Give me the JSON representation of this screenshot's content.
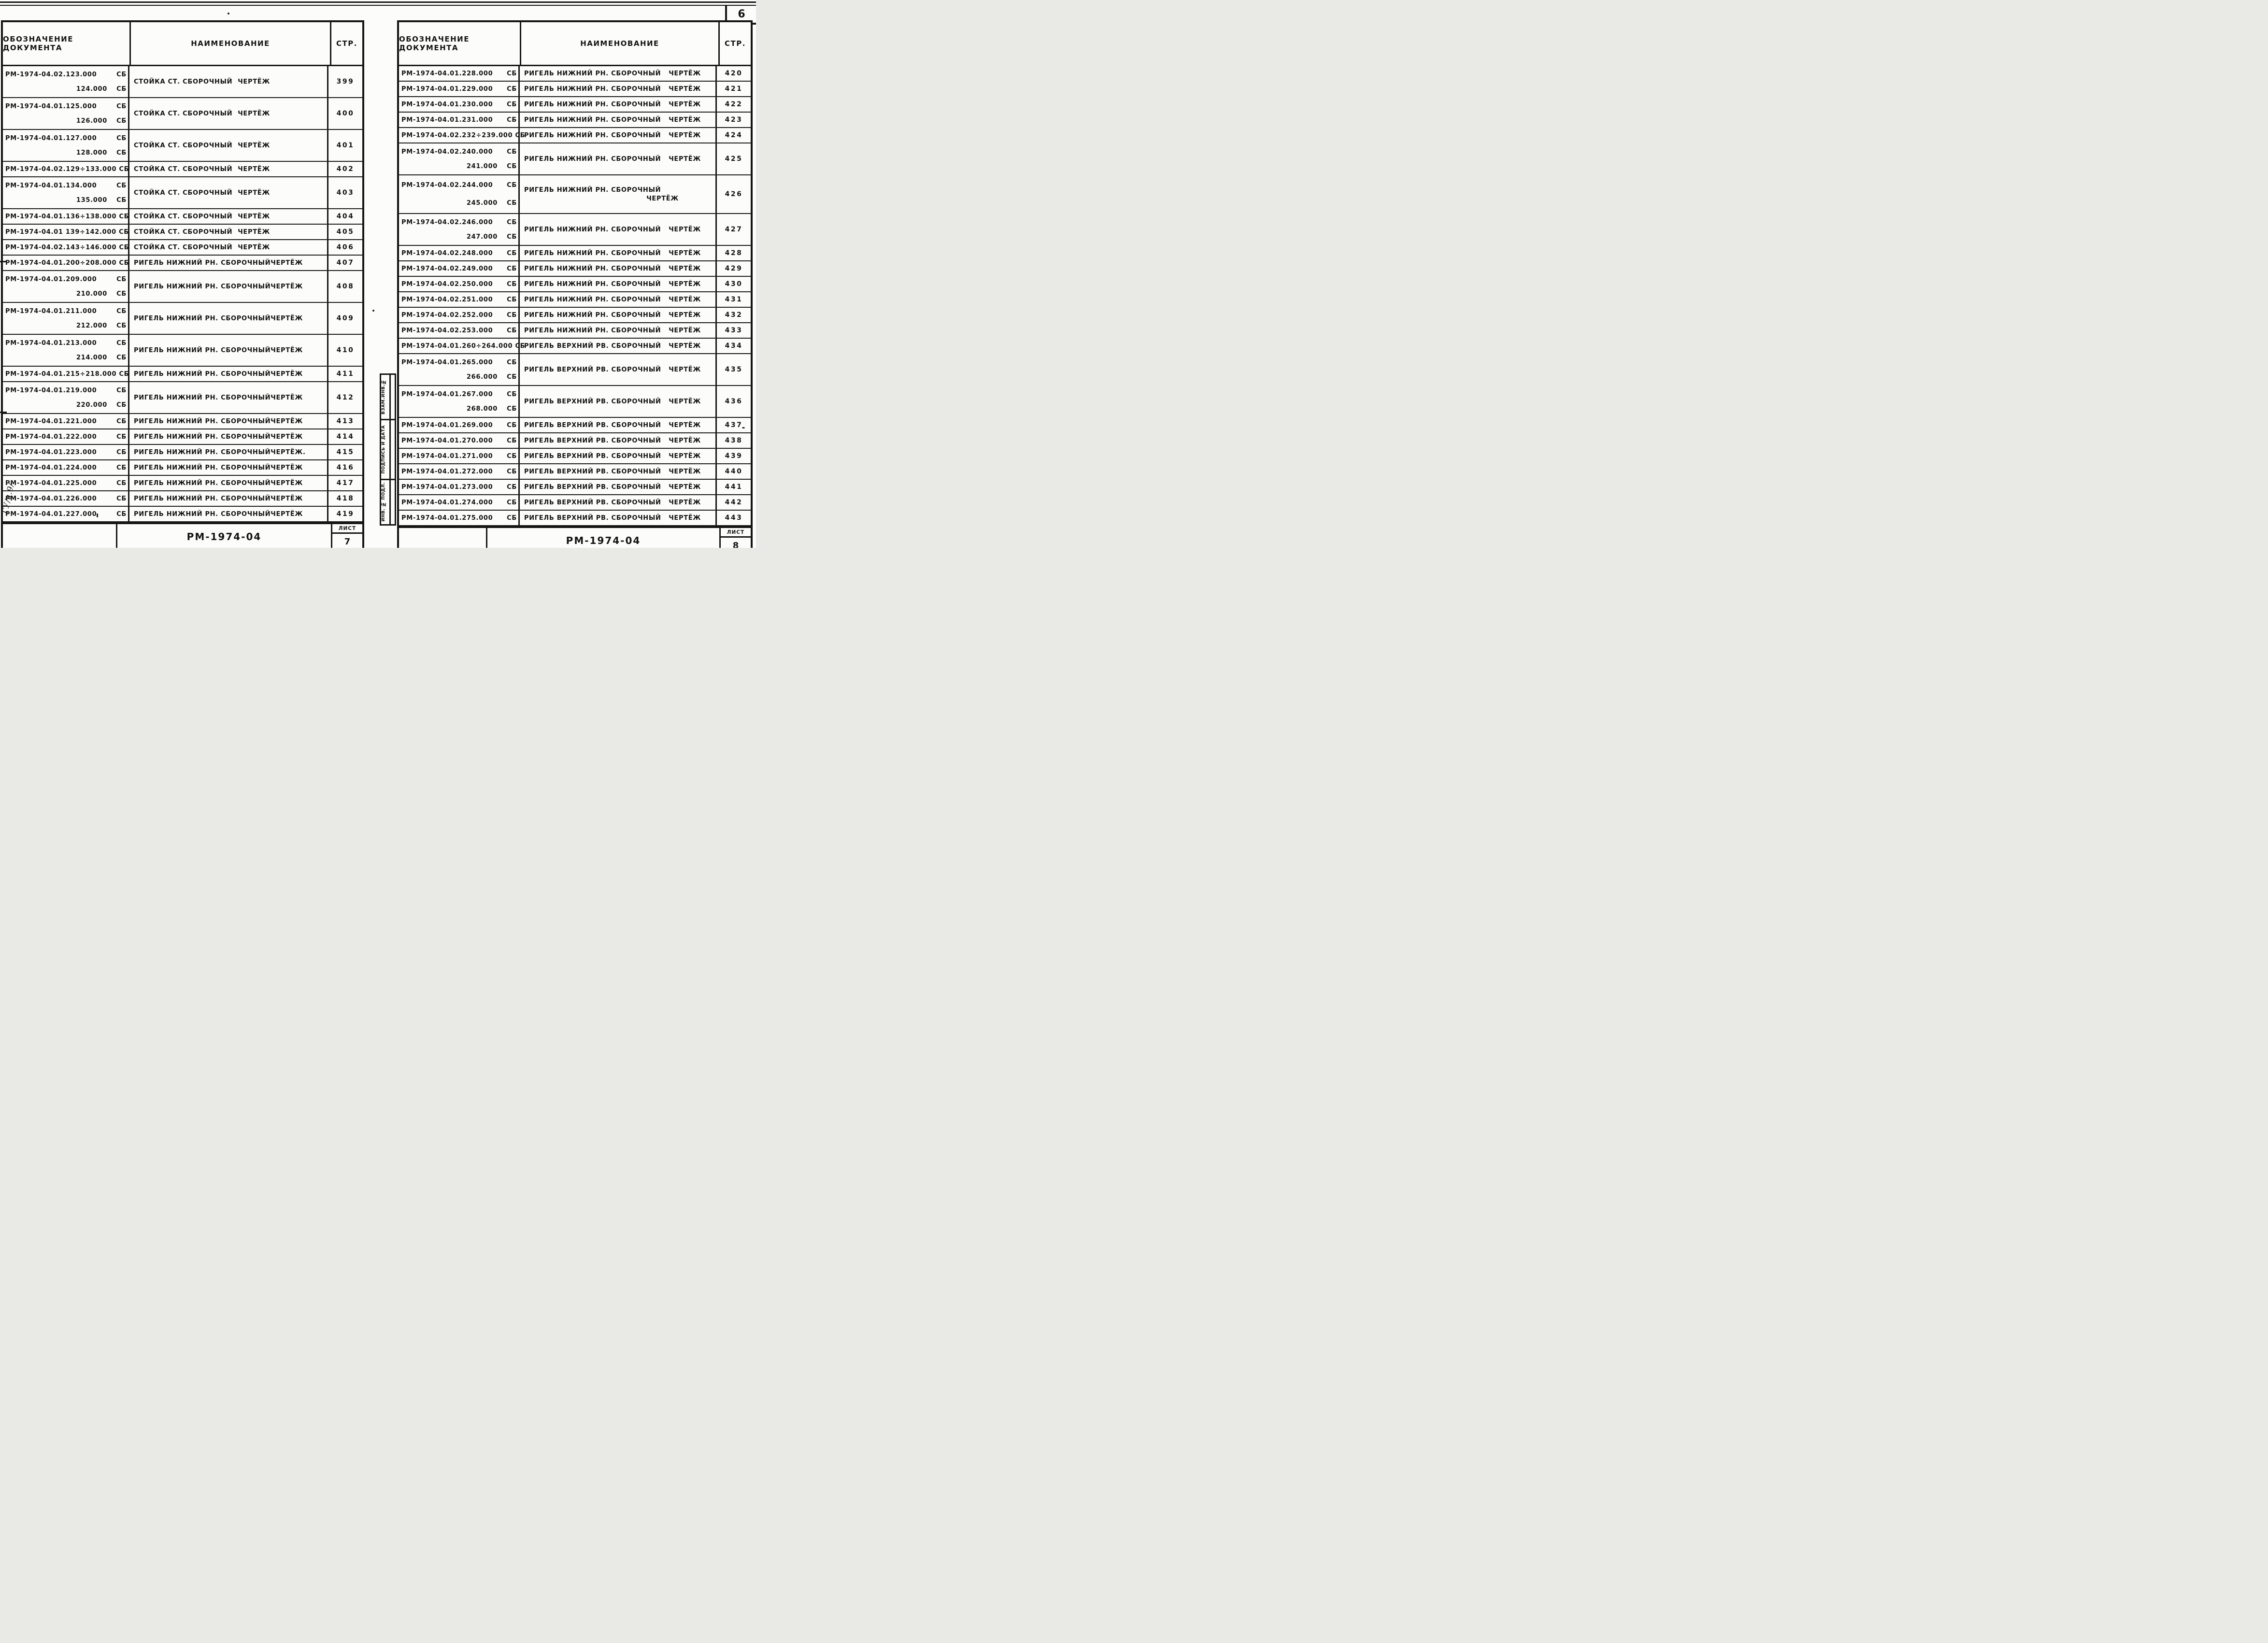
{
  "page": {
    "corner_number": "6",
    "margin_note": "ГУ/а.9/"
  },
  "stamp": {
    "labels": [
      "ВЗАМ.ИНВ.№",
      "ПОДПИСЬ И ДАТА",
      "ИНВ. № ПОДЛ."
    ]
  },
  "tables": [
    {
      "side": "left",
      "header": {
        "designation": "ОБОЗНАЧЕНИЕ ДОКУМЕНТА",
        "name": "НАИМЕНОВАНИЕ",
        "page": "СТР."
      },
      "footer": {
        "doc": "РМ-1974-04",
        "sheet_label": "ЛИСТ",
        "sheet": "7"
      },
      "rows": [
        {
          "d1": "РМ-1974-04.02.123.000",
          "s1": "СБ",
          "d2": "124.000",
          "s2": "СБ",
          "n1": "СТОЙКА СТ. СБОРОЧНЫЙ",
          "n2": "ЧЕРТЁЖ",
          "p": "399"
        },
        {
          "d1": "РМ-1974-04.01.125.000",
          "s1": "СБ",
          "d2": "126.000",
          "s2": "СБ",
          "n1": "СТОЙКА СТ. СБОРОЧНЫЙ",
          "n2": "ЧЕРТЁЖ",
          "p": "400"
        },
        {
          "d1": "РМ-1974-04.01.127.000",
          "s1": "СБ",
          "d2": "128.000",
          "s2": "СБ",
          "n1": "СТОЙКА СТ. СБОРОЧНЫЙ",
          "n2": "ЧЕРТЁЖ",
          "p": "401"
        },
        {
          "d1": "РМ-1974-04.02.129÷133.000",
          "s1": "СБ",
          "n1": "СТОЙКА СТ. СБОРОЧНЫЙ",
          "n2": "ЧЕРТЁЖ",
          "p": "402"
        },
        {
          "d1": "РМ-1974-04.01.134.000",
          "s1": "СБ",
          "d2": "135.000",
          "s2": "СБ",
          "n1": "СТОЙКА СТ. СБОРОЧНЫЙ",
          "n2": "ЧЕРТЁЖ",
          "p": "403"
        },
        {
          "d1": "РМ-1974-04.01.136÷138.000",
          "s1": "СБ",
          "n1": "СТОЙКА СТ. СБОРОЧНЫЙ",
          "n2": "ЧЕРТЁЖ",
          "p": "404"
        },
        {
          "d1": "РМ-1974-04.01 139÷142.000",
          "s1": "СБ",
          "n1": "СТОЙКА СТ. СБОРОЧНЫЙ",
          "n2": "ЧЕРТЁЖ",
          "p": "405"
        },
        {
          "d1": "РМ-1974-04.02.143÷146.000",
          "s1": "СБ",
          "n1": "СТОЙКА СТ. СБОРОЧНЫЙ",
          "n2": "ЧЕРТЁЖ",
          "p": "406"
        },
        {
          "d1": "РМ-1974-04.01.200÷208.000",
          "s1": "СБ",
          "n1": "РИГЕЛЬ НИЖНИЙ РН. СБОРОЧНЫЙ",
          "n2": "ЧЕРТЁЖ",
          "p": "407"
        },
        {
          "d1": "РМ-1974-04.01.209.000",
          "s1": "СБ",
          "d2": "210.000",
          "s2": "СБ",
          "n1": "РИГЕЛЬ НИЖНИЙ РН. СБОРОЧНЫЙ",
          "n2": "ЧЕРТЁЖ",
          "p": "408"
        },
        {
          "d1": "РМ-1974-04.01.211.000",
          "s1": "СБ",
          "d2": "212.000",
          "s2": "СБ",
          "n1": "РИГЕЛЬ НИЖНИЙ РН. СБОРОЧНЫЙ",
          "n2": "ЧЕРТЁЖ",
          "p": "409"
        },
        {
          "d1": "РМ-1974-04.01.213.000",
          "s1": "СБ",
          "d2": "214.000",
          "s2": "СБ",
          "n1": "РИГЕЛЬ НИЖНИЙ РН. СБОРОЧНЫЙ",
          "n2": "ЧЕРТЁЖ",
          "p": "410"
        },
        {
          "d1": "РМ-1974-04.01.215÷218.000",
          "s1": "СБ",
          "n1": "РИГЕЛЬ НИЖНИЙ РН. СБОРОЧНЫЙ",
          "n2": "ЧЕРТЁЖ",
          "p": "411"
        },
        {
          "d1": "РМ-1974-04.01.219.000",
          "s1": "СБ",
          "d2": "220.000",
          "s2": "СБ",
          "n1": "РИГЕЛЬ НИЖНИЙ РН. СБОРОЧНЫЙ",
          "n2": "ЧЕРТЁЖ",
          "p": "412"
        },
        {
          "d1": "РМ-1974-04.01.221.000",
          "s1": "СБ",
          "n1": "РИГЕЛЬ НИЖНИЙ РН. СБОРОЧНЫЙ",
          "n2": "ЧЕРТЁЖ",
          "p": "413"
        },
        {
          "d1": "РМ-1974-04.01.222.000",
          "s1": "СБ",
          "n1": "РИГЕЛЬ НИЖНИЙ РН. СБОРОЧНЫЙ",
          "n2": "ЧЕРТЁЖ",
          "p": "414"
        },
        {
          "d1": "РМ-1974-04.01.223.000",
          "s1": "СБ",
          "n1": "РИГЕЛЬ НИЖНИЙ РН. СБОРОЧНЫЙ",
          "n2": "ЧЕРТЁЖ.",
          "p": "415"
        },
        {
          "d1": "РМ-1974-04.01.224.000",
          "s1": "СБ",
          "n1": "РИГЕЛЬ НИЖНИЙ РН. СБОРОЧНЫЙ",
          "n2": "ЧЕРТЁЖ",
          "p": "416"
        },
        {
          "d1": "РМ-1974-04.01.225.000",
          "s1": "СБ",
          "n1": "РИГЕЛЬ НИЖНИЙ РН. СБОРОЧНЫЙ",
          "n2": "ЧЕРТЁЖ",
          "p": "417"
        },
        {
          "d1": "РМ-1974-04.01.226.000",
          "s1": "СБ",
          "n1": "РИГЕЛЬ НИЖНИЙ РН. СБОРОЧНЫЙ",
          "n2": "ЧЕРТЁЖ",
          "p": "418"
        },
        {
          "d1": "РМ-1974-04.01.227.000",
          "s1": "СБ",
          "n1": "РИГЕЛЬ НИЖНИЙ РН. СБОРОЧНЫЙ",
          "n2": "ЧЕРТЁЖ",
          "p": "419"
        }
      ]
    },
    {
      "side": "right",
      "header": {
        "designation": "ОБОЗНАЧЕНИЕ ДОКУМЕНТА",
        "name": "НАИМЕНОВАНИЕ",
        "page": "СТР."
      },
      "footer": {
        "doc": "РМ-1974-04",
        "sheet_label": "ЛИСТ",
        "sheet": "8"
      },
      "rows": [
        {
          "d1": "РМ-1974-04.01.228.000",
          "s1": "СБ",
          "n1": "РИГЕЛЬ НИЖНИЙ РН. СБОРОЧНЫЙ",
          "n2": "ЧЕРТЁЖ",
          "p": "420"
        },
        {
          "d1": "РМ-1974-04.01.229.000",
          "s1": "СБ",
          "n1": "РИГЕЛЬ НИЖНИЙ РН. СБОРОЧНЫЙ",
          "n2": "ЧЕРТЁЖ",
          "p": "421"
        },
        {
          "d1": "РМ-1974-04.01.230.000",
          "s1": "СБ",
          "n1": "РИГЕЛЬ НИЖНИЙ РН. СБОРОЧНЫЙ",
          "n2": "ЧЕРТЁЖ",
          "p": "422"
        },
        {
          "d1": "РМ-1974-04.01.231.000",
          "s1": "СБ",
          "n1": "РИГЕЛЬ НИЖНИЙ РН. СБОРОЧНЫЙ",
          "n2": "ЧЕРТЁЖ",
          "p": "423"
        },
        {
          "d1": "РМ-1974-04.02.232÷239.000",
          "s1": "СБ",
          "n1": "РИГЕЛЬ НИЖНИЙ РН. СБОРОЧНЫЙ",
          "n2": "ЧЕРТЁЖ",
          "p": "424"
        },
        {
          "d1": "РМ-1974-04.02.240.000",
          "s1": "СБ",
          "d2": "241.000",
          "s2": "СБ",
          "n1": "РИГЕЛЬ НИЖНИЙ РН. СБОРОЧНЫЙ",
          "n2": "ЧЕРТЁЖ",
          "p": "425"
        },
        {
          "d1": "РМ-1974-04.02.244.000",
          "s1": "СБ",
          "d2": "245.000",
          "s2": "СБ",
          "n1": "РИГЕЛЬ НИЖНИЙ РН. СБОРОЧНЫЙ",
          "n2": "ЧЕРТЁЖ",
          "p": "426",
          "wrap": true
        },
        {
          "d1": "РМ-1974-04.02.246.000",
          "s1": "СБ",
          "d2": "247.000",
          "s2": "СБ",
          "n1": "РИГЕЛЬ НИЖНИЙ РН. СБОРОЧНЫЙ",
          "n2": "ЧЕРТЁЖ",
          "p": "427"
        },
        {
          "d1": "РМ-1974-04.02.248.000",
          "s1": "СБ",
          "n1": "РИГЕЛЬ НИЖНИЙ РН. СБОРОЧНЫЙ",
          "n2": "ЧЕРТЁЖ",
          "p": "428"
        },
        {
          "d1": "РМ-1974-04.02.249.000",
          "s1": "СБ",
          "n1": "РИГЕЛЬ НИЖНИЙ РН. СБОРОЧНЫЙ",
          "n2": "ЧЕРТЁЖ",
          "p": "429"
        },
        {
          "d1": "РМ-1974-04.02.250.000",
          "s1": "СБ",
          "n1": "РИГЕЛЬ НИЖНИЙ РН. СБОРОЧНЫЙ",
          "n2": "ЧЕРТЁЖ",
          "p": "430"
        },
        {
          "d1": "РМ-1974-04.02.251.000",
          "s1": "СБ",
          "n1": "РИГЕЛЬ НИЖНИЙ РН. СБОРОЧНЫЙ",
          "n2": "ЧЕРТЁЖ",
          "p": "431"
        },
        {
          "d1": "РМ-1974-04.02.252.000",
          "s1": "СБ",
          "n1": "РИГЕЛЬ НИЖНИЙ РН. СБОРОЧНЫЙ",
          "n2": "ЧЕРТЁЖ",
          "p": "432"
        },
        {
          "d1": "РМ-1974-04.02.253.000",
          "s1": "СБ",
          "n1": "РИГЕЛЬ НИЖНИЙ РН. СБОРОЧНЫЙ",
          "n2": "ЧЕРТЁЖ",
          "p": "433"
        },
        {
          "d1": "РМ-1974-04.01.260÷264.000",
          "s1": "СБ",
          "n1": "РИГЕЛЬ ВЕРХНИЙ РВ. СБОРОЧНЫЙ",
          "n2": "ЧЕРТЁЖ",
          "p": "434"
        },
        {
          "d1": "РМ-1974-04.01.265.000",
          "s1": "СБ",
          "d2": "266.000",
          "s2": "СБ",
          "n1": "РИГЕЛЬ ВЕРХНИЙ РВ. СБОРОЧНЫЙ",
          "n2": "ЧЕРТЁЖ",
          "p": "435"
        },
        {
          "d1": "РМ-1974-04.01.267.000",
          "s1": "СБ",
          "d2": "268.000",
          "s2": "СБ",
          "n1": "РИГЕЛЬ ВЕРХНИЙ РВ. СБОРОЧНЫЙ",
          "n2": "ЧЕРТЁЖ",
          "p": "436"
        },
        {
          "d1": "РМ-1974-04.01.269.000",
          "s1": "СБ",
          "n1": "РИГЕЛЬ ВЕРХНИЙ РВ. СБОРОЧНЫЙ",
          "n2": "ЧЕРТЁЖ",
          "p": "437"
        },
        {
          "d1": "РМ-1974-04.01.270.000",
          "s1": "СБ",
          "n1": "РИГЕЛЬ ВЕРХНИЙ РВ. СБОРОЧНЫЙ",
          "n2": "ЧЕРТЁЖ",
          "p": "438"
        },
        {
          "d1": "РМ-1974-04.01.271.000",
          "s1": "СБ",
          "n1": "РИГЕЛЬ ВЕРХНИЙ РВ. СБОРОЧНЫЙ",
          "n2": "ЧЕРТЁЖ",
          "p": "439"
        },
        {
          "d1": "РМ-1974-04.01.272.000",
          "s1": "СБ",
          "n1": "РИГЕЛЬ ВЕРХНИЙ РВ. СБОРОЧНЫЙ",
          "n2": "ЧЕРТЁЖ",
          "p": "440"
        },
        {
          "d1": "РМ-1974-04.01.273.000",
          "s1": "СБ",
          "n1": "РИГЕЛЬ ВЕРХНИЙ РВ. СБОРОЧНЫЙ",
          "n2": "ЧЕРТЁЖ",
          "p": "441"
        },
        {
          "d1": "РМ-1974-04.01.274.000",
          "s1": "СБ",
          "n1": "РИГЕЛЬ ВЕРХНИЙ РВ. СБОРОЧНЫЙ",
          "n2": "ЧЕРТЁЖ",
          "p": "442"
        },
        {
          "d1": "РМ-1974-04.01.275.000",
          "s1": "СБ",
          "n1": "РИГЕЛЬ ВЕРХНИЙ РВ. СБОРОЧНЫЙ",
          "n2": "ЧЕРТЁЖ",
          "p": "443"
        }
      ]
    }
  ]
}
